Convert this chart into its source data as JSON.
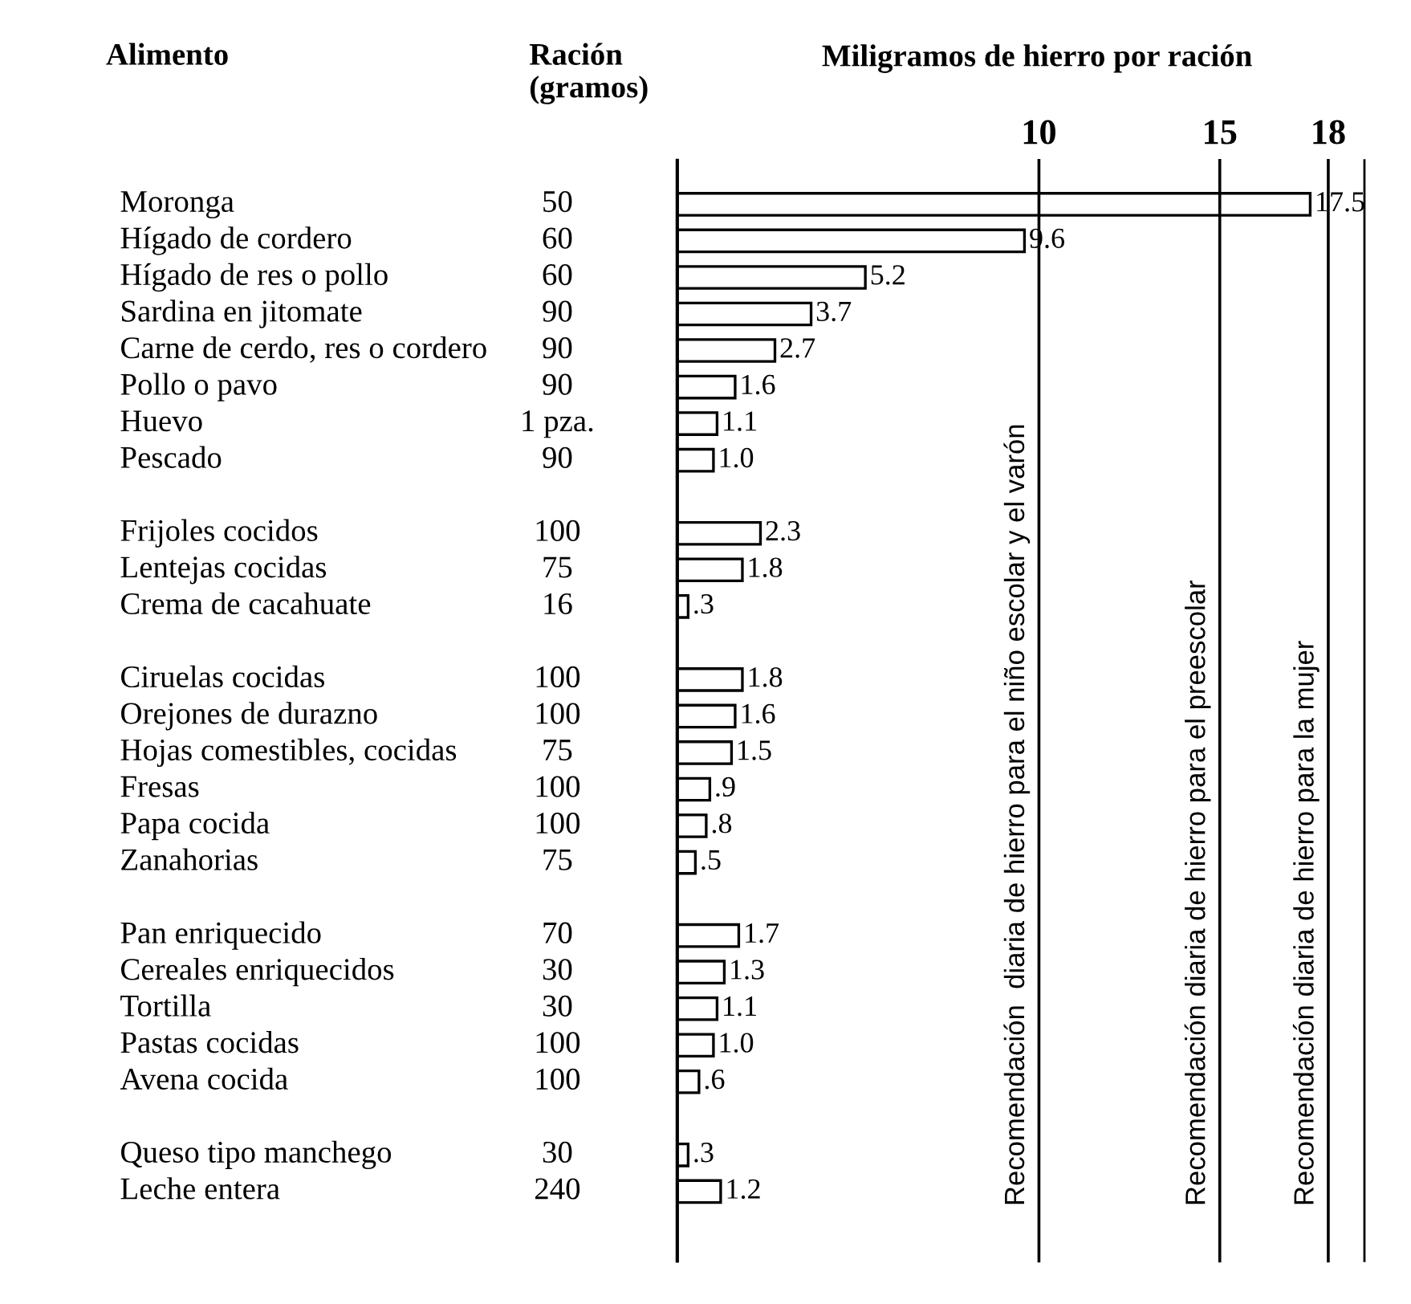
{
  "chart_data": {
    "type": "bar",
    "orientation": "horizontal",
    "title": "Miligramos de hierro por ración",
    "categories": [
      "Moronga",
      "Hígado de cordero",
      "Hígado de res o pollo",
      "Sardina en jitomate",
      "Carne de cerdo, res o cordero",
      "Pollo o pavo",
      "Huevo",
      "Pescado",
      null,
      "Frijoles cocidos",
      "Lentejas cocidas",
      "Crema de cacahuate",
      null,
      "Ciruelas cocidas",
      "Orejones de durazno",
      "Hojas comestibles, cocidas",
      "Fresas",
      "Papa cocida",
      "Zanahorias",
      null,
      "Pan enriquecido",
      "Cereales enriquecidos",
      "Tortilla",
      "Pastas cocidas",
      "Avena cocida",
      null,
      "Queso tipo manchego",
      "Leche entera"
    ],
    "values": [
      17.5,
      9.6,
      5.2,
      3.7,
      2.7,
      1.6,
      1.1,
      1.0,
      null,
      2.3,
      1.8,
      0.3,
      null,
      1.8,
      1.6,
      1.5,
      0.9,
      0.8,
      0.5,
      null,
      1.7,
      1.3,
      1.1,
      1.0,
      0.6,
      null,
      0.3,
      1.2
    ],
    "value_labels": [
      "17.5",
      "9.6",
      "5.2",
      "3.7",
      "2.7",
      "1.6",
      "1.1",
      "1.0",
      null,
      "2.3",
      "1.8",
      ".3",
      null,
      "1.8",
      "1.6",
      "1.5",
      ".9",
      ".8",
      ".5",
      null,
      "1.7",
      "1.3",
      "1.1",
      "1.0",
      ".6",
      null,
      ".3",
      "1.2"
    ],
    "color": "#ffffff",
    "xlim": [
      0,
      19
    ],
    "xticks": [
      10,
      15,
      18
    ],
    "ref_lines": [
      {
        "axis": "x",
        "value": 10,
        "label": "Recomendación  diaria de hierro para el niño escolar y el varón",
        "color": "#000000"
      },
      {
        "axis": "x",
        "value": 15,
        "label": "Recomendación diaria de hierro para el preescolar",
        "color": "#000000"
      },
      {
        "axis": "x",
        "value": 18,
        "label": "Recomendación diaria de hierro para la mujer",
        "color": "#000000"
      }
    ],
    "annotations": [
      "Alimento",
      "Ración\n(gramos)",
      "50",
      "60",
      "60",
      "90",
      "90",
      "90",
      "1 pza.",
      "90",
      "100",
      "75",
      "16",
      "100",
      "100",
      "75",
      "100",
      "100",
      "75",
      "70",
      "30",
      "30",
      "100",
      "100",
      "30",
      "240"
    ]
  }
}
